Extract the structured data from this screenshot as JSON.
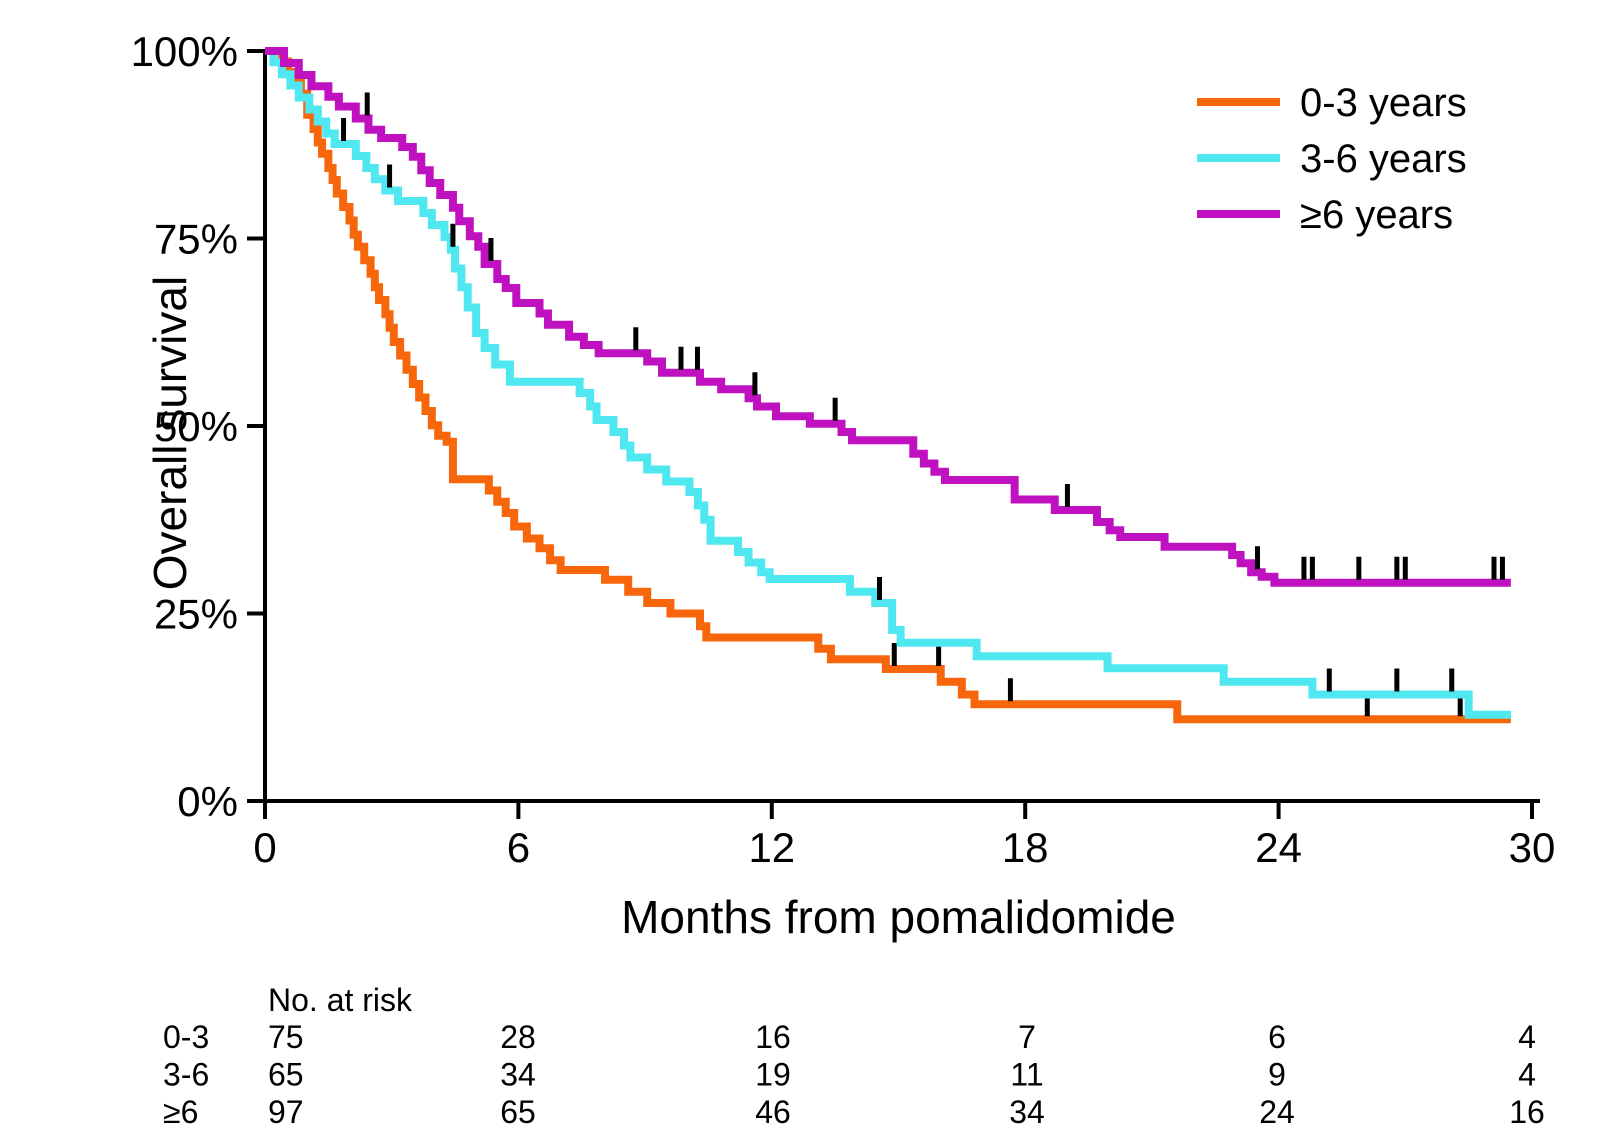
{
  "chart_data": {
    "type": "line",
    "subtype": "kaplan-meier-step",
    "title": "",
    "xlabel": "Months from pomalidomide",
    "ylabel": "Overall survival",
    "xlim": [
      0,
      30
    ],
    "ylim": [
      0,
      100
    ],
    "grid": false,
    "legend_position": "top-right",
    "x_ticks": [
      0,
      6,
      12,
      18,
      24,
      30
    ],
    "y_ticks": [
      {
        "value": 0,
        "label": "0%"
      },
      {
        "value": 25,
        "label": "25%"
      },
      {
        "value": 50,
        "label": "50%"
      },
      {
        "value": 75,
        "label": "75%"
      },
      {
        "value": 100,
        "label": "100%"
      }
    ],
    "axis_color": "#000000",
    "series": [
      {
        "name": "0-3 years",
        "color": "#F7660A",
        "end": 29.5,
        "points": [
          [
            0,
            100
          ],
          [
            0.4,
            98.6
          ],
          [
            0.55,
            97.2
          ],
          [
            0.7,
            95.8
          ],
          [
            0.85,
            94.3
          ],
          [
            1.0,
            91.5
          ],
          [
            1.15,
            89.6
          ],
          [
            1.25,
            87.8
          ],
          [
            1.35,
            86.3
          ],
          [
            1.5,
            84.4
          ],
          [
            1.6,
            82.8
          ],
          [
            1.7,
            81.0
          ],
          [
            1.85,
            79.2
          ],
          [
            2.0,
            77.4
          ],
          [
            2.1,
            75.5
          ],
          [
            2.2,
            73.9
          ],
          [
            2.35,
            72.1
          ],
          [
            2.5,
            70.3
          ],
          [
            2.6,
            68.5
          ],
          [
            2.7,
            66.8
          ],
          [
            2.85,
            64.9
          ],
          [
            2.95,
            63.1
          ],
          [
            3.05,
            61.2
          ],
          [
            3.2,
            59.4
          ],
          [
            3.35,
            57.5
          ],
          [
            3.5,
            55.6
          ],
          [
            3.65,
            53.8
          ],
          [
            3.8,
            52.0
          ],
          [
            3.95,
            50.1
          ],
          [
            4.1,
            48.7
          ],
          [
            4.3,
            47.9
          ],
          [
            4.45,
            42.9
          ],
          [
            5.3,
            41.4
          ],
          [
            5.5,
            39.9
          ],
          [
            5.7,
            38.4
          ],
          [
            5.9,
            36.6
          ],
          [
            6.2,
            35.0
          ],
          [
            6.5,
            33.7
          ],
          [
            6.75,
            32.1
          ],
          [
            7.0,
            30.8
          ],
          [
            8.05,
            29.5
          ],
          [
            8.6,
            27.9
          ],
          [
            9.05,
            26.4
          ],
          [
            9.6,
            25.0
          ],
          [
            10.3,
            23.3
          ],
          [
            10.45,
            21.8
          ],
          [
            13.1,
            20.3
          ],
          [
            13.4,
            18.9
          ],
          [
            14.7,
            17.6
          ],
          [
            16.0,
            15.9
          ],
          [
            16.5,
            14.2
          ],
          [
            16.8,
            12.9
          ],
          [
            21.6,
            10.9
          ]
        ],
        "censors": [
          14.9,
          15.95,
          17.65,
          26.1,
          28.3
        ]
      },
      {
        "name": "3-6 years",
        "color": "#4FE8F0",
        "end": 29.5,
        "points": [
          [
            0,
            100
          ],
          [
            0.2,
            98.5
          ],
          [
            0.4,
            96.9
          ],
          [
            0.6,
            95.4
          ],
          [
            0.8,
            93.8
          ],
          [
            1.05,
            92.2
          ],
          [
            1.25,
            90.6
          ],
          [
            1.45,
            89.0
          ],
          [
            1.65,
            87.6
          ],
          [
            2.15,
            86.0
          ],
          [
            2.4,
            84.4
          ],
          [
            2.6,
            82.9
          ],
          [
            2.85,
            81.4
          ],
          [
            3.15,
            80.0
          ],
          [
            3.75,
            78.4
          ],
          [
            3.95,
            76.8
          ],
          [
            4.25,
            75.2
          ],
          [
            4.4,
            73.5
          ],
          [
            4.5,
            71.0
          ],
          [
            4.65,
            68.5
          ],
          [
            4.8,
            65.8
          ],
          [
            5.0,
            62.4
          ],
          [
            5.2,
            60.4
          ],
          [
            5.45,
            58.2
          ],
          [
            5.8,
            55.9
          ],
          [
            7.45,
            54.4
          ],
          [
            7.7,
            52.6
          ],
          [
            7.85,
            50.8
          ],
          [
            8.25,
            49.2
          ],
          [
            8.5,
            47.4
          ],
          [
            8.65,
            45.8
          ],
          [
            9.05,
            44.2
          ],
          [
            9.5,
            42.6
          ],
          [
            10.05,
            41.2
          ],
          [
            10.25,
            39.4
          ],
          [
            10.4,
            37.5
          ],
          [
            10.55,
            34.7
          ],
          [
            11.2,
            33.2
          ],
          [
            11.45,
            31.8
          ],
          [
            11.75,
            30.5
          ],
          [
            11.95,
            29.6
          ],
          [
            13.85,
            27.9
          ],
          [
            14.45,
            26.4
          ],
          [
            14.85,
            22.8
          ],
          [
            15.05,
            21.1
          ],
          [
            16.85,
            19.3
          ],
          [
            19.95,
            17.7
          ],
          [
            22.7,
            15.9
          ],
          [
            24.8,
            14.2
          ],
          [
            28.5,
            11.5
          ]
        ],
        "censors": [
          1.86,
          2.95,
          4.45,
          14.55,
          25.2,
          26.8,
          28.1
        ]
      },
      {
        "name": "≥6 years",
        "color": "#C011C0",
        "end": 29.5,
        "points": [
          [
            0,
            100
          ],
          [
            0.45,
            98.4
          ],
          [
            0.8,
            96.8
          ],
          [
            1.1,
            95.3
          ],
          [
            1.5,
            93.9
          ],
          [
            1.75,
            92.6
          ],
          [
            2.15,
            91.0
          ],
          [
            2.45,
            89.5
          ],
          [
            2.75,
            88.4
          ],
          [
            3.25,
            87.2
          ],
          [
            3.5,
            85.9
          ],
          [
            3.7,
            84.1
          ],
          [
            3.9,
            82.4
          ],
          [
            4.15,
            80.8
          ],
          [
            4.45,
            79.1
          ],
          [
            4.6,
            77.3
          ],
          [
            4.85,
            75.3
          ],
          [
            5.05,
            73.9
          ],
          [
            5.2,
            71.6
          ],
          [
            5.5,
            69.6
          ],
          [
            5.7,
            68.4
          ],
          [
            5.95,
            66.4
          ],
          [
            6.5,
            65.0
          ],
          [
            6.7,
            63.5
          ],
          [
            7.2,
            61.9
          ],
          [
            7.55,
            60.8
          ],
          [
            7.9,
            59.7
          ],
          [
            9.05,
            58.6
          ],
          [
            9.4,
            57.1
          ],
          [
            10.3,
            55.9
          ],
          [
            10.8,
            54.9
          ],
          [
            11.45,
            53.7
          ],
          [
            11.65,
            52.6
          ],
          [
            12.1,
            51.3
          ],
          [
            12.9,
            50.3
          ],
          [
            13.65,
            49.2
          ],
          [
            13.9,
            48.1
          ],
          [
            15.35,
            46.3
          ],
          [
            15.6,
            45.0
          ],
          [
            15.85,
            43.9
          ],
          [
            16.1,
            42.8
          ],
          [
            17.75,
            40.2
          ],
          [
            18.7,
            38.8
          ],
          [
            19.7,
            37.2
          ],
          [
            20.0,
            36.1
          ],
          [
            20.25,
            35.2
          ],
          [
            21.3,
            33.9
          ],
          [
            22.9,
            32.8
          ],
          [
            23.1,
            31.7
          ],
          [
            23.35,
            30.5
          ],
          [
            23.6,
            29.9
          ],
          [
            23.9,
            29.1
          ]
        ],
        "censors": [
          2.42,
          5.35,
          8.78,
          9.85,
          10.24,
          11.6,
          13.5,
          19.0,
          23.5,
          24.6,
          24.8,
          25.9,
          26.8,
          27.0,
          29.1,
          29.3
        ]
      }
    ]
  },
  "risk_table": {
    "header": "No. at risk",
    "columns": [
      0,
      6,
      12,
      18,
      24,
      30
    ],
    "rows": [
      {
        "label": "0-3",
        "values": [
          75,
          28,
          16,
          7,
          6,
          4
        ]
      },
      {
        "label": "3-6",
        "values": [
          65,
          34,
          19,
          11,
          9,
          4
        ]
      },
      {
        "label": "≥6",
        "values": [
          97,
          65,
          46,
          34,
          24,
          16
        ]
      }
    ]
  }
}
